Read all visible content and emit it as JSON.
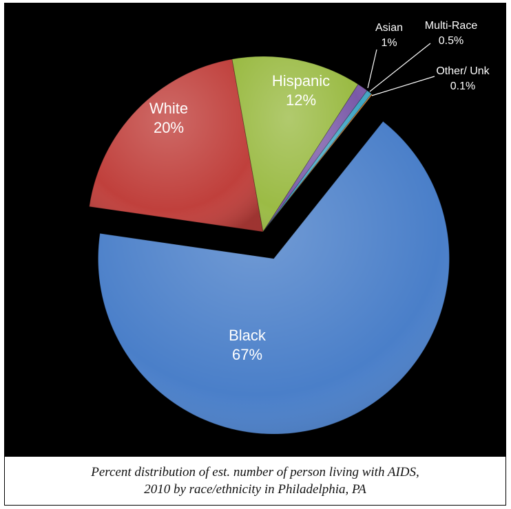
{
  "chart_data": {
    "type": "pie",
    "title": "",
    "slices": [
      {
        "label": "Black",
        "value": 67,
        "value_label": "67%",
        "color": "#4a7fc9",
        "exploded": true
      },
      {
        "label": "White",
        "value": 20,
        "value_label": "20%",
        "color": "#c0403c",
        "exploded": false
      },
      {
        "label": "Hispanic",
        "value": 12,
        "value_label": "12%",
        "color": "#9bbb45",
        "exploded": false
      },
      {
        "label": "Asian",
        "value": 1,
        "value_label": "1%",
        "color": "#7a59a8",
        "exploded": false
      },
      {
        "label": "Multi-Race",
        "value": 0.5,
        "value_label": "0.5%",
        "color": "#3fa6c4",
        "exploded": false
      },
      {
        "label": "Other/ Unk",
        "value": 0.1,
        "value_label": "0.1%",
        "color": "#e8923d",
        "exploded": false
      }
    ],
    "background": "#000000",
    "label_color": "#ffffff"
  },
  "caption": "Percent distribution of est. number of person living with AIDS, 2010 by race/ethnicity in Philadelphia, PA"
}
